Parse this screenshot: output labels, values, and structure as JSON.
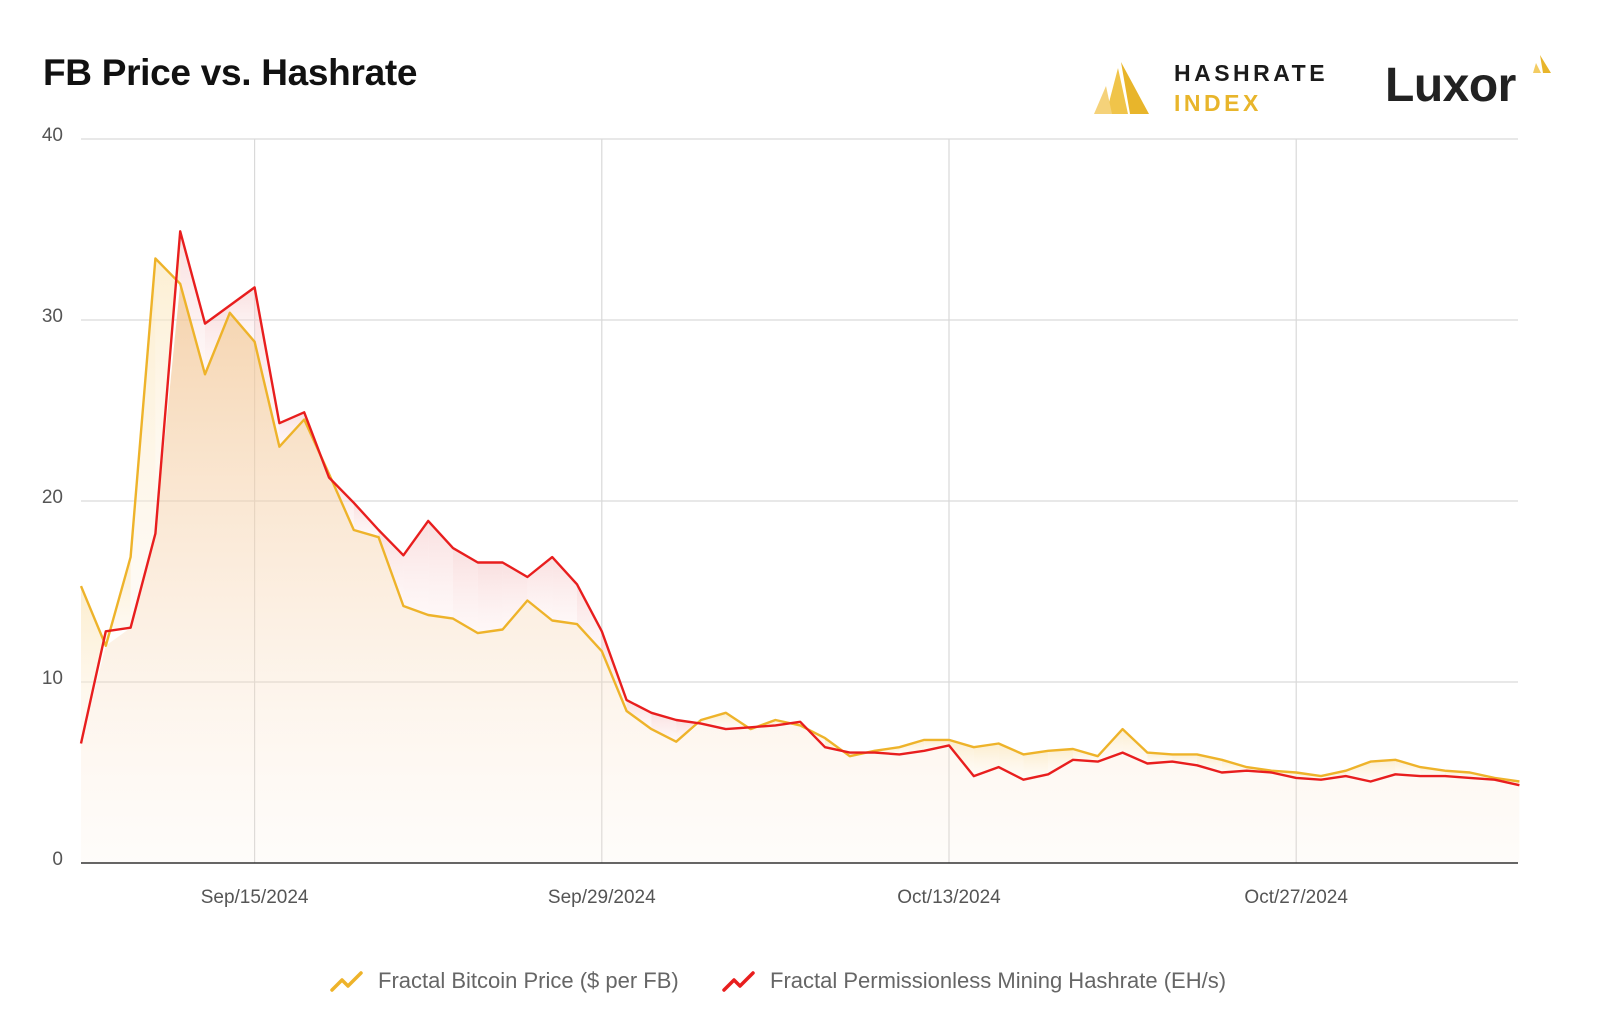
{
  "title": "FB Price vs. Hashrate",
  "logos": {
    "hashrate_index_line1": "HASHRATE",
    "hashrate_index_line2": "INDEX",
    "luxor": "Luxor"
  },
  "colors": {
    "price": "#eeb32a",
    "hashrate": "#e81e1e",
    "grid": "#d9d9d9",
    "axis": "#333333",
    "tick_text": "#555555"
  },
  "chart_data": {
    "type": "line",
    "x_start": "2024-09-08",
    "x_step_days": 1,
    "ylim": [
      0,
      40
    ],
    "y_ticks": [
      0,
      10,
      20,
      30,
      40
    ],
    "x_ticks": [
      {
        "date": "2024-09-15",
        "label": "Sep/15/2024"
      },
      {
        "date": "2024-09-29",
        "label": "Sep/29/2024"
      },
      {
        "date": "2024-10-13",
        "label": "Oct/13/2024"
      },
      {
        "date": "2024-10-27",
        "label": "Oct/27/2024"
      }
    ],
    "grid": true,
    "legend_position": "bottom-center",
    "series": [
      {
        "name": "Fractal Bitcoin Price ($ per FB)",
        "color": "#eeb32a",
        "values": [
          15.3,
          12.0,
          16.9,
          33.4,
          32.0,
          27.0,
          30.4,
          28.8,
          23.0,
          24.5,
          21.5,
          18.4,
          18.0,
          14.2,
          13.7,
          13.5,
          12.7,
          12.9,
          14.5,
          13.4,
          13.2,
          11.7,
          8.4,
          7.4,
          6.7,
          7.9,
          8.3,
          7.4,
          7.9,
          7.6,
          6.9,
          5.9,
          6.2,
          6.4,
          6.8,
          6.8,
          6.4,
          6.6,
          6.0,
          6.2,
          6.3,
          5.9,
          7.4,
          6.1,
          6.0,
          6.0,
          5.7,
          5.3,
          5.1,
          5.0,
          4.8,
          5.1,
          5.6,
          5.7,
          5.3,
          5.1,
          5.0,
          4.7,
          4.5
        ]
      },
      {
        "name": "Fractal Permissionless Mining Hashrate (EH/s)",
        "color": "#e81e1e",
        "values": [
          6.6,
          12.8,
          13.0,
          18.2,
          34.9,
          29.8,
          30.8,
          31.8,
          24.3,
          24.9,
          21.3,
          19.9,
          18.4,
          17.0,
          18.9,
          17.4,
          16.6,
          16.6,
          15.8,
          16.9,
          15.4,
          12.8,
          9.0,
          8.3,
          7.9,
          7.7,
          7.4,
          7.5,
          7.6,
          7.8,
          6.4,
          6.1,
          6.1,
          6.0,
          6.2,
          6.5,
          4.8,
          5.3,
          4.6,
          4.9,
          5.7,
          5.6,
          6.1,
          5.5,
          5.6,
          5.4,
          5.0,
          5.1,
          5.0,
          4.7,
          4.6,
          4.8,
          4.5,
          4.9,
          4.8,
          4.8,
          4.7,
          4.6,
          4.3
        ]
      }
    ]
  }
}
